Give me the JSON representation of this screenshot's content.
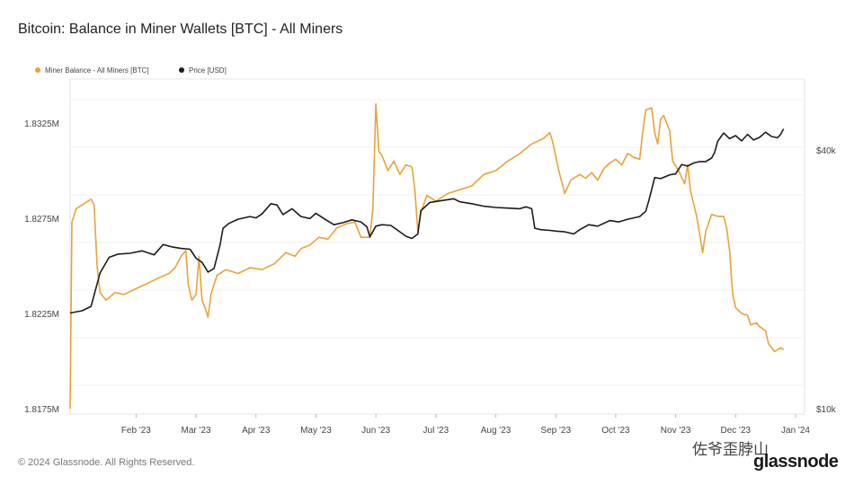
{
  "page": {
    "title": "Bitcoin: Balance in Miner Wallets [BTC] - All Miners",
    "copyright": "© 2024 Glassnode. All Rights Reserved.",
    "watermark": "佐爷歪脖山",
    "brand": "glassnode"
  },
  "chart_data": {
    "type": "line",
    "title": "Bitcoin: Balance in Miner Wallets [BTC] - All Miners",
    "legend_position": "top-left",
    "grid": true,
    "x_range": [
      0,
      12.25
    ],
    "x_ticks": [
      {
        "x": 1.1,
        "label": "Feb '23"
      },
      {
        "x": 2.1,
        "label": "Mar '23"
      },
      {
        "x": 3.1,
        "label": "Apr '23"
      },
      {
        "x": 4.1,
        "label": "May '23"
      },
      {
        "x": 5.1,
        "label": "Jun '23"
      },
      {
        "x": 6.1,
        "label": "Jul '23"
      },
      {
        "x": 7.1,
        "label": "Aug '23"
      },
      {
        "x": 8.1,
        "label": "Sep '23"
      },
      {
        "x": 9.1,
        "label": "Oct '23"
      },
      {
        "x": 10.1,
        "label": "Nov '23"
      },
      {
        "x": 11.1,
        "label": "Dec '23"
      },
      {
        "x": 12.1,
        "label": "Jan '24"
      }
    ],
    "y_left": {
      "range": [
        1.8175,
        1.8325
      ],
      "ticks": [
        {
          "v": 1.8175,
          "label": "1.8175M"
        },
        {
          "v": 1.8225,
          "label": "1.8225M"
        },
        {
          "v": 1.8275,
          "label": "1.8275M"
        },
        {
          "v": 1.8325,
          "label": "1.8325M"
        }
      ]
    },
    "y_right": {
      "scale": "log",
      "range": [
        10000,
        45000
      ],
      "ticks": [
        {
          "v": 10000,
          "label": "$10k"
        },
        {
          "v": 40000,
          "label": "$40k"
        }
      ]
    },
    "series": [
      {
        "name": "Miner Balance - All Miners [BTC]",
        "color": "#E8A33A",
        "axis": "left",
        "points": [
          [
            0.0,
            1.8175
          ],
          [
            0.03,
            1.8273
          ],
          [
            0.1,
            1.828
          ],
          [
            0.25,
            1.8283
          ],
          [
            0.35,
            1.8285
          ],
          [
            0.4,
            1.8282
          ],
          [
            0.45,
            1.825
          ],
          [
            0.5,
            1.8236
          ],
          [
            0.6,
            1.8232
          ],
          [
            0.75,
            1.8236
          ],
          [
            0.9,
            1.8235
          ],
          [
            1.1,
            1.8238
          ],
          [
            1.3,
            1.8241
          ],
          [
            1.5,
            1.8244
          ],
          [
            1.65,
            1.8246
          ],
          [
            1.75,
            1.8249
          ],
          [
            1.85,
            1.8255
          ],
          [
            1.93,
            1.8258
          ],
          [
            1.97,
            1.824
          ],
          [
            2.03,
            1.8232
          ],
          [
            2.1,
            1.8235
          ],
          [
            2.15,
            1.8255
          ],
          [
            2.2,
            1.8232
          ],
          [
            2.25,
            1.8228
          ],
          [
            2.3,
            1.8223
          ],
          [
            2.35,
            1.8235
          ],
          [
            2.45,
            1.8245
          ],
          [
            2.6,
            1.8248
          ],
          [
            2.8,
            1.8246
          ],
          [
            3.0,
            1.8249
          ],
          [
            3.2,
            1.8248
          ],
          [
            3.4,
            1.8251
          ],
          [
            3.6,
            1.8257
          ],
          [
            3.75,
            1.8255
          ],
          [
            3.85,
            1.8259
          ],
          [
            4.0,
            1.8261
          ],
          [
            4.15,
            1.8265
          ],
          [
            4.3,
            1.8264
          ],
          [
            4.45,
            1.827
          ],
          [
            4.6,
            1.8272
          ],
          [
            4.75,
            1.8273
          ],
          [
            4.85,
            1.8265
          ],
          [
            5.0,
            1.8265
          ],
          [
            5.05,
            1.828
          ],
          [
            5.1,
            1.8335
          ],
          [
            5.15,
            1.831
          ],
          [
            5.2,
            1.8308
          ],
          [
            5.3,
            1.83
          ],
          [
            5.4,
            1.8305
          ],
          [
            5.5,
            1.8298
          ],
          [
            5.6,
            1.8303
          ],
          [
            5.7,
            1.8302
          ],
          [
            5.75,
            1.829
          ],
          [
            5.8,
            1.8268
          ],
          [
            5.85,
            1.8278
          ],
          [
            5.95,
            1.8287
          ],
          [
            6.1,
            1.8284
          ],
          [
            6.3,
            1.8288
          ],
          [
            6.5,
            1.829
          ],
          [
            6.7,
            1.8292
          ],
          [
            6.9,
            1.8298
          ],
          [
            7.1,
            1.83
          ],
          [
            7.3,
            1.8305
          ],
          [
            7.5,
            1.8309
          ],
          [
            7.7,
            1.8314
          ],
          [
            7.9,
            1.8317
          ],
          [
            8.0,
            1.832
          ],
          [
            8.05,
            1.8315
          ],
          [
            8.15,
            1.83
          ],
          [
            8.25,
            1.8288
          ],
          [
            8.35,
            1.8295
          ],
          [
            8.5,
            1.8298
          ],
          [
            8.6,
            1.8296
          ],
          [
            8.7,
            1.8299
          ],
          [
            8.8,
            1.8295
          ],
          [
            8.9,
            1.8301
          ],
          [
            9.0,
            1.8304
          ],
          [
            9.1,
            1.8306
          ],
          [
            9.2,
            1.8303
          ],
          [
            9.3,
            1.8309
          ],
          [
            9.4,
            1.8307
          ],
          [
            9.5,
            1.8306
          ],
          [
            9.55,
            1.832
          ],
          [
            9.6,
            1.8332
          ],
          [
            9.7,
            1.8333
          ],
          [
            9.75,
            1.832
          ],
          [
            9.8,
            1.8314
          ],
          [
            9.85,
            1.8327
          ],
          [
            9.9,
            1.8329
          ],
          [
            10.0,
            1.8321
          ],
          [
            10.05,
            1.8305
          ],
          [
            10.15,
            1.83
          ],
          [
            10.25,
            1.8293
          ],
          [
            10.3,
            1.8303
          ],
          [
            10.35,
            1.8289
          ],
          [
            10.45,
            1.8276
          ],
          [
            10.55,
            1.8257
          ],
          [
            10.6,
            1.8268
          ],
          [
            10.7,
            1.8277
          ],
          [
            10.8,
            1.8276
          ],
          [
            10.9,
            1.8276
          ],
          [
            10.95,
            1.827
          ],
          [
            11.0,
            1.8258
          ],
          [
            11.05,
            1.8235
          ],
          [
            11.1,
            1.8228
          ],
          [
            11.2,
            1.8225
          ],
          [
            11.3,
            1.8224
          ],
          [
            11.35,
            1.8219
          ],
          [
            11.45,
            1.822
          ],
          [
            11.5,
            1.8218
          ],
          [
            11.6,
            1.8216
          ],
          [
            11.65,
            1.8209
          ],
          [
            11.75,
            1.8205
          ],
          [
            11.85,
            1.8207
          ],
          [
            11.9,
            1.8206
          ]
        ]
      },
      {
        "name": "Price [USD]",
        "color": "#1C1C1C",
        "axis": "right",
        "points": [
          [
            0.0,
            16700
          ],
          [
            0.2,
            16900
          ],
          [
            0.35,
            17300
          ],
          [
            0.5,
            20700
          ],
          [
            0.65,
            22500
          ],
          [
            0.8,
            22900
          ],
          [
            1.0,
            23000
          ],
          [
            1.2,
            23300
          ],
          [
            1.4,
            22800
          ],
          [
            1.55,
            24100
          ],
          [
            1.7,
            23800
          ],
          [
            1.85,
            23600
          ],
          [
            2.0,
            23500
          ],
          [
            2.1,
            22400
          ],
          [
            2.2,
            21900
          ],
          [
            2.3,
            20800
          ],
          [
            2.4,
            21200
          ],
          [
            2.5,
            24000
          ],
          [
            2.55,
            26300
          ],
          [
            2.65,
            27000
          ],
          [
            2.8,
            27600
          ],
          [
            3.0,
            28000
          ],
          [
            3.1,
            27800
          ],
          [
            3.2,
            28400
          ],
          [
            3.35,
            30000
          ],
          [
            3.45,
            29800
          ],
          [
            3.55,
            28300
          ],
          [
            3.7,
            29200
          ],
          [
            3.85,
            28000
          ],
          [
            4.0,
            27700
          ],
          [
            4.1,
            28500
          ],
          [
            4.25,
            27600
          ],
          [
            4.4,
            26800
          ],
          [
            4.55,
            27100
          ],
          [
            4.7,
            27500
          ],
          [
            4.85,
            27200
          ],
          [
            4.95,
            26500
          ],
          [
            5.0,
            25100
          ],
          [
            5.1,
            26600
          ],
          [
            5.2,
            26800
          ],
          [
            5.35,
            26700
          ],
          [
            5.5,
            25800
          ],
          [
            5.6,
            25200
          ],
          [
            5.7,
            24900
          ],
          [
            5.8,
            25500
          ],
          [
            5.85,
            28900
          ],
          [
            6.0,
            30200
          ],
          [
            6.2,
            30500
          ],
          [
            6.4,
            30800
          ],
          [
            6.5,
            30300
          ],
          [
            6.7,
            30000
          ],
          [
            6.9,
            29600
          ],
          [
            7.1,
            29400
          ],
          [
            7.3,
            29300
          ],
          [
            7.5,
            29200
          ],
          [
            7.6,
            29500
          ],
          [
            7.7,
            29200
          ],
          [
            7.75,
            26300
          ],
          [
            7.85,
            26100
          ],
          [
            8.0,
            26000
          ],
          [
            8.1,
            25900
          ],
          [
            8.25,
            25800
          ],
          [
            8.4,
            25500
          ],
          [
            8.5,
            26100
          ],
          [
            8.65,
            26800
          ],
          [
            8.8,
            26600
          ],
          [
            9.0,
            27400
          ],
          [
            9.15,
            27200
          ],
          [
            9.3,
            27600
          ],
          [
            9.5,
            28000
          ],
          [
            9.6,
            28800
          ],
          [
            9.65,
            30400
          ],
          [
            9.75,
            34500
          ],
          [
            9.85,
            34300
          ],
          [
            10.0,
            35000
          ],
          [
            10.1,
            35200
          ],
          [
            10.2,
            37000
          ],
          [
            10.3,
            36700
          ],
          [
            10.4,
            37300
          ],
          [
            10.5,
            37600
          ],
          [
            10.6,
            37600
          ],
          [
            10.7,
            38300
          ],
          [
            10.75,
            39500
          ],
          [
            10.8,
            41900
          ],
          [
            10.9,
            43800
          ],
          [
            11.0,
            42500
          ],
          [
            11.1,
            43200
          ],
          [
            11.2,
            42000
          ],
          [
            11.3,
            43500
          ],
          [
            11.4,
            42200
          ],
          [
            11.5,
            42800
          ],
          [
            11.6,
            44000
          ],
          [
            11.7,
            43000
          ],
          [
            11.8,
            42700
          ],
          [
            11.85,
            43500
          ],
          [
            11.9,
            44800
          ]
        ]
      }
    ]
  }
}
